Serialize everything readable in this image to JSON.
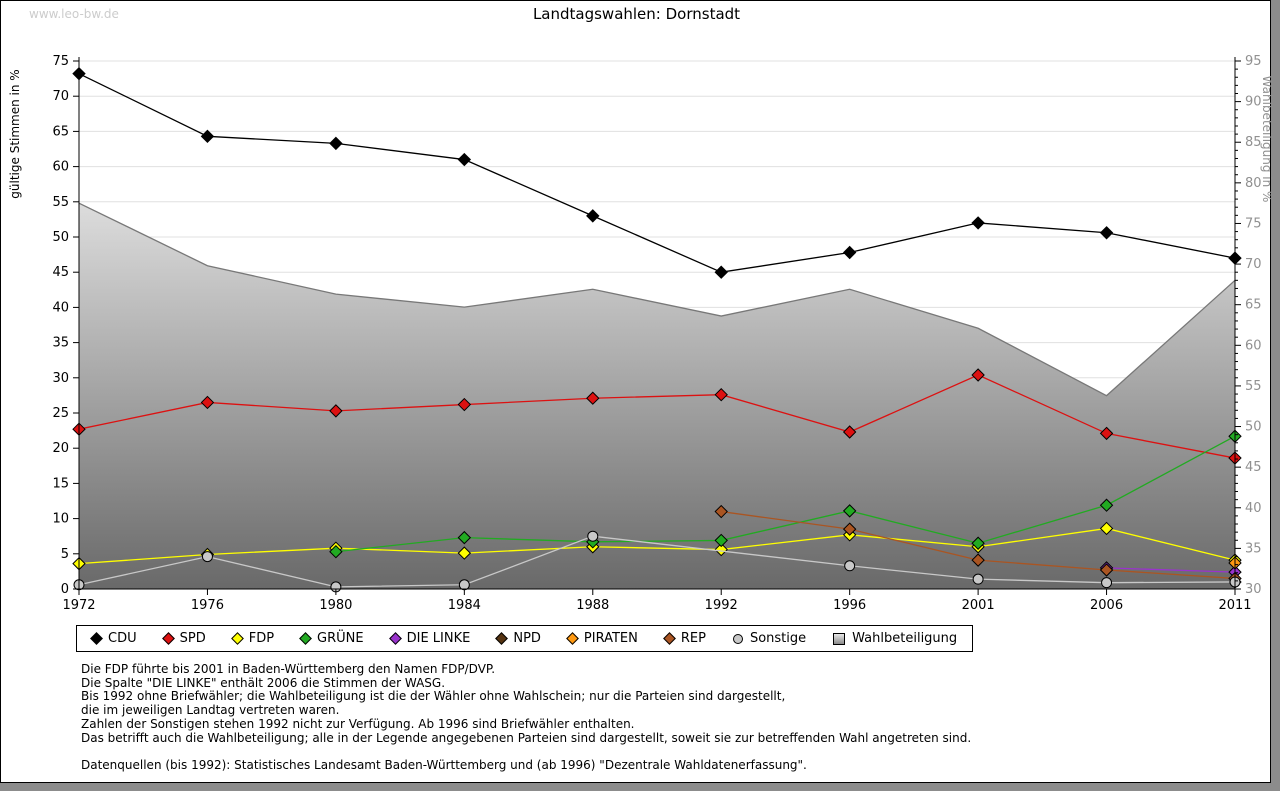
{
  "watermark": "www.leo-bw.de",
  "title": "Landtagswahlen: Dornstadt",
  "chart_data": {
    "type": "line",
    "title": "Landtagswahlen: Dornstadt",
    "categories": [
      "1972",
      "1976",
      "1980",
      "1984",
      "1988",
      "1992",
      "1996",
      "2001",
      "2006",
      "2011"
    ],
    "left_axis": {
      "label": "gültige Stimmen in %",
      "min": 0,
      "max": 75,
      "tick_step": 5
    },
    "right_axis": {
      "label": "Wahlbeteiligung in %",
      "min": 30,
      "max": 95,
      "tick_step": 5,
      "minor_tick_step": 1,
      "label_color": "#909090"
    },
    "grid": true,
    "legend_position": "bottom",
    "series": [
      {
        "name": "CDU",
        "color": "#000000",
        "marker": "diamond",
        "axis": "left",
        "values": [
          73.2,
          64.3,
          63.3,
          61.0,
          53.0,
          45.0,
          47.8,
          52.0,
          50.6,
          47.0
        ]
      },
      {
        "name": "SPD",
        "color": "#dd1111",
        "marker": "diamond",
        "axis": "left",
        "values": [
          22.7,
          26.5,
          25.3,
          26.2,
          27.1,
          27.6,
          22.3,
          30.4,
          22.1,
          18.6
        ]
      },
      {
        "name": "FDP",
        "color": "#ffff00",
        "marker": "diamond",
        "axis": "left",
        "values": [
          3.6,
          4.9,
          5.8,
          5.1,
          6.0,
          5.6,
          7.7,
          6.0,
          8.6,
          4.1
        ]
      },
      {
        "name": "GRÜNE",
        "color": "#22aa22",
        "marker": "diamond",
        "axis": "left",
        "values": [
          null,
          null,
          5.3,
          7.3,
          6.7,
          6.9,
          11.1,
          6.5,
          11.9,
          21.7
        ]
      },
      {
        "name": "DIE LINKE",
        "color": "#9933cc",
        "marker": "diamond",
        "axis": "left",
        "values": [
          null,
          null,
          null,
          null,
          null,
          null,
          null,
          null,
          3.0,
          2.4
        ]
      },
      {
        "name": "NPD",
        "color": "#553311",
        "marker": "diamond",
        "axis": "left",
        "values": [
          null,
          null,
          null,
          null,
          null,
          null,
          null,
          null,
          null,
          1.0
        ]
      },
      {
        "name": "PIRATEN",
        "color": "#ff9911",
        "marker": "diamond",
        "axis": "left",
        "values": [
          null,
          null,
          null,
          null,
          null,
          null,
          null,
          null,
          null,
          3.7
        ]
      },
      {
        "name": "REP",
        "color": "#aa5522",
        "marker": "diamond",
        "axis": "left",
        "values": [
          null,
          null,
          null,
          null,
          null,
          11.0,
          8.5,
          4.1,
          2.7,
          1.5
        ]
      },
      {
        "name": "Sonstige",
        "color": "#c8c8c8",
        "marker": "circle",
        "axis": "left",
        "values": [
          0.6,
          4.6,
          0.3,
          0.6,
          7.5,
          null,
          3.3,
          1.4,
          0.9,
          1.0
        ]
      }
    ],
    "participation": {
      "name": "Wahlbeteiligung",
      "axis": "right",
      "marker": "square",
      "fill_top": "#ffffff",
      "fill_bottom": "#696969",
      "stroke": "#787878",
      "values": [
        77.5,
        69.8,
        66.3,
        64.7,
        66.9,
        63.6,
        66.9,
        62.1,
        53.8,
        68.0
      ]
    }
  },
  "footnotes": [
    "Die FDP führte bis 2001 in Baden-Württemberg den Namen FDP/DVP.",
    "Die Spalte \"DIE LINKE\" enthält 2006 die Stimmen der WASG.",
    "Bis 1992 ohne Briefwähler; die Wahlbeteiligung ist die der Wähler ohne Wahlschein; nur die Parteien sind dargestellt,",
    "die im jeweiligen Landtag vertreten waren.",
    "Zahlen der Sonstigen stehen 1992 nicht zur Verfügung. Ab 1996 sind Briefwähler enthalten.",
    "Das betrifft auch die Wahlbeteiligung; alle in der Legende angegebenen Parteien sind dargestellt, soweit sie zur betreffenden Wahl angetreten sind.",
    "",
    "Datenquellen (bis 1992): Statistisches Landesamt Baden-Württemberg und (ab 1996) \"Dezentrale Wahldatenerfassung\"."
  ]
}
